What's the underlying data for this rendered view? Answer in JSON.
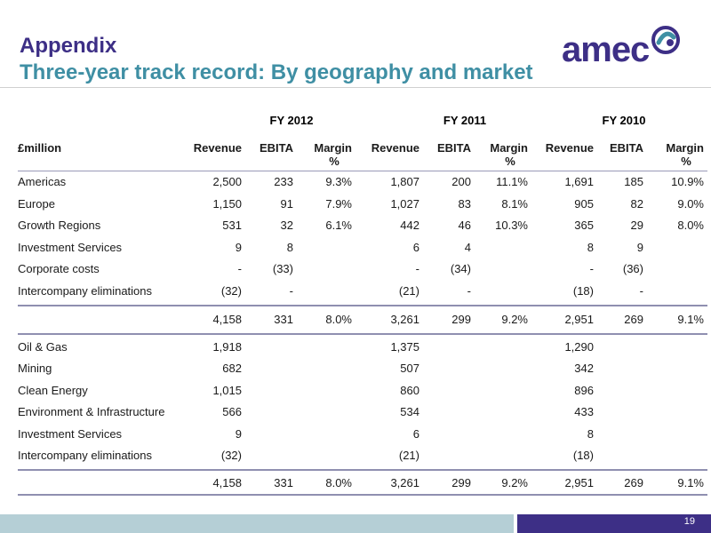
{
  "header": {
    "title": "Appendix",
    "subtitle": "Three-year track record: By geography and market",
    "logo_text": "amec"
  },
  "table": {
    "year_headers": [
      "FY 2012",
      "FY 2011",
      "FY 2010"
    ],
    "row_header_label": "£million",
    "column_labels": [
      "Revenue",
      "EBITA",
      "Margin %",
      "Revenue",
      "EBITA",
      "Margin %",
      "Revenue",
      "EBITA",
      "Margin %"
    ],
    "margin_label_line1": "Margin",
    "margin_label_line2": "%",
    "geography_rows": [
      {
        "label": "Americas",
        "values": [
          "2,500",
          "233",
          "9.3%",
          "1,807",
          "200",
          "11.1%",
          "1,691",
          "185",
          "10.9%"
        ]
      },
      {
        "label": "Europe",
        "values": [
          "1,150",
          "91",
          "7.9%",
          "1,027",
          "83",
          "8.1%",
          "905",
          "82",
          "9.0%"
        ]
      },
      {
        "label": "Growth Regions",
        "values": [
          "531",
          "32",
          "6.1%",
          "442",
          "46",
          "10.3%",
          "365",
          "29",
          "8.0%"
        ]
      },
      {
        "label": "Investment Services",
        "values": [
          "9",
          "8",
          "",
          "6",
          "4",
          "",
          "8",
          "9",
          ""
        ]
      },
      {
        "label": "Corporate costs",
        "values": [
          "-",
          "(33)",
          "",
          "-",
          "(34)",
          "",
          "-",
          "(36)",
          ""
        ]
      },
      {
        "label": "Intercompany eliminations",
        "values": [
          "(32)",
          "-",
          "",
          "(21)",
          "-",
          "",
          "(18)",
          "-",
          ""
        ]
      }
    ],
    "geography_total": {
      "label": "",
      "values": [
        "4,158",
        "331",
        "8.0%",
        "3,261",
        "299",
        "9.2%",
        "2,951",
        "269",
        "9.1%"
      ]
    },
    "market_rows": [
      {
        "label": "Oil & Gas",
        "values": [
          "1,918",
          "",
          "",
          "1,375",
          "",
          "",
          "1,290",
          "",
          ""
        ]
      },
      {
        "label": "Mining",
        "values": [
          "682",
          "",
          "",
          "507",
          "",
          "",
          "342",
          "",
          ""
        ]
      },
      {
        "label": "Clean Energy",
        "values": [
          "1,015",
          "",
          "",
          "860",
          "",
          "",
          "896",
          "",
          ""
        ]
      },
      {
        "label": "Environment & Infrastructure",
        "values": [
          "566",
          "",
          "",
          "534",
          "",
          "",
          "433",
          "",
          ""
        ]
      },
      {
        "label": "Investment Services",
        "values": [
          "9",
          "",
          "",
          "6",
          "",
          "",
          "8",
          "",
          ""
        ]
      },
      {
        "label": "Intercompany eliminations",
        "values": [
          "(32)",
          "",
          "",
          "(21)",
          "",
          "",
          "(18)",
          "",
          ""
        ]
      }
    ],
    "market_total": {
      "label": "",
      "values": [
        "4,158",
        "331",
        "8.0%",
        "3,261",
        "299",
        "9.2%",
        "2,951",
        "269",
        "9.1%"
      ]
    }
  },
  "footer": {
    "page_number": "19"
  },
  "colors": {
    "title": "#3d2f86",
    "subtitle": "#3f8fa4",
    "footer_left": "#b5cfd6",
    "footer_right": "#3d2f86"
  }
}
